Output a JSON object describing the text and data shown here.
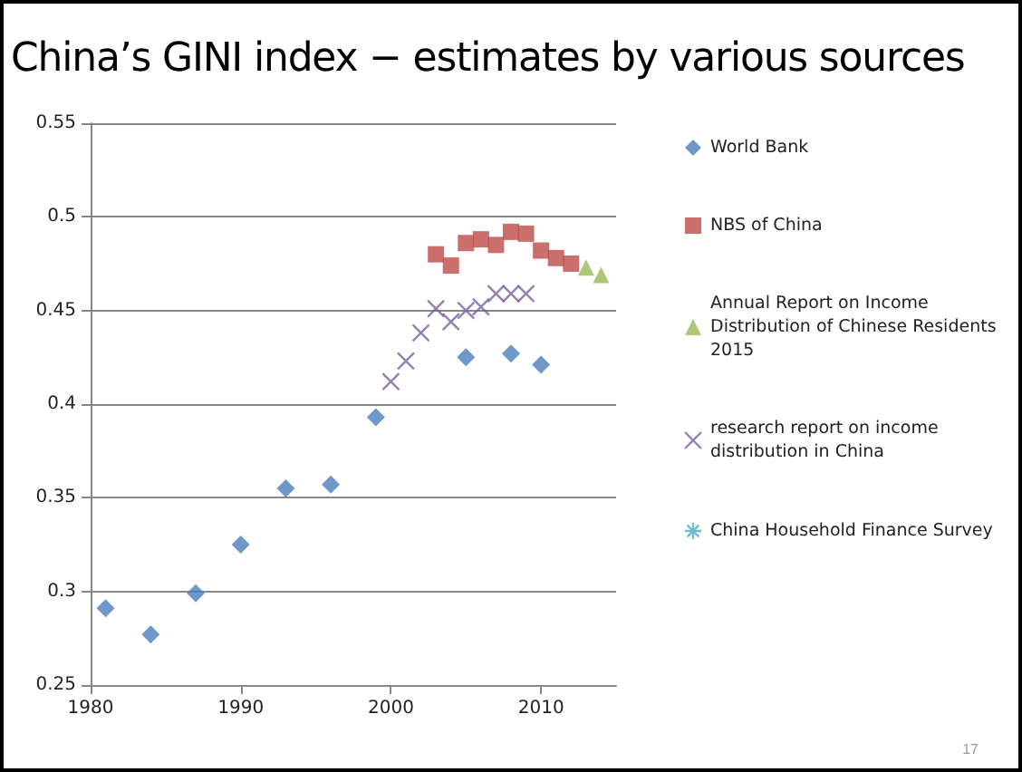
{
  "chart_data": {
    "type": "scatter",
    "title": "China’s GINI index − estimates by various sources",
    "xlim": [
      1980,
      2015
    ],
    "xticks": [
      1980,
      1990,
      2000,
      2010
    ],
    "ylim": [
      0.25,
      0.55
    ],
    "yticks": [
      0.25,
      0.3,
      0.35,
      0.4,
      0.45,
      0.5,
      0.55
    ],
    "grid": "y",
    "legend": "right",
    "annotations": [
      "17"
    ],
    "series": [
      {
        "name": "World Bank",
        "color": "#4a7ebb",
        "marker": "diamond",
        "x": [
          1981,
          1984,
          1987,
          1990,
          1993,
          1996,
          1999,
          2005,
          2008,
          2010
        ],
        "values": [
          0.291,
          0.277,
          0.299,
          0.325,
          0.355,
          0.357,
          0.393,
          0.425,
          0.427,
          0.421
        ]
      },
      {
        "name": "NBS of China",
        "color": "#be4b48",
        "marker": "square",
        "x": [
          2003,
          2004,
          2005,
          2006,
          2007,
          2008,
          2009,
          2010,
          2011,
          2012
        ],
        "values": [
          0.48,
          0.474,
          0.486,
          0.488,
          0.485,
          0.492,
          0.491,
          0.482,
          0.478,
          0.475
        ]
      },
      {
        "name": "Annual Report on Income Distribution of Chinese Residents 2015",
        "color": "#98b954",
        "marker": "triangle",
        "x": [
          2013,
          2014
        ],
        "values": [
          0.473,
          0.469
        ]
      },
      {
        "name": "research report on income distribution in China",
        "color": "#7d60a0",
        "marker": "cross",
        "x": [
          2000,
          2001,
          2002,
          2003,
          2004,
          2005,
          2006,
          2007,
          2008,
          2009
        ],
        "values": [
          0.412,
          0.423,
          0.438,
          0.451,
          0.444,
          0.45,
          0.452,
          0.459,
          0.459,
          0.459
        ]
      },
      {
        "name": "China Household Finance Survey",
        "color": "#4bacc6",
        "marker": "star"
      }
    ]
  }
}
